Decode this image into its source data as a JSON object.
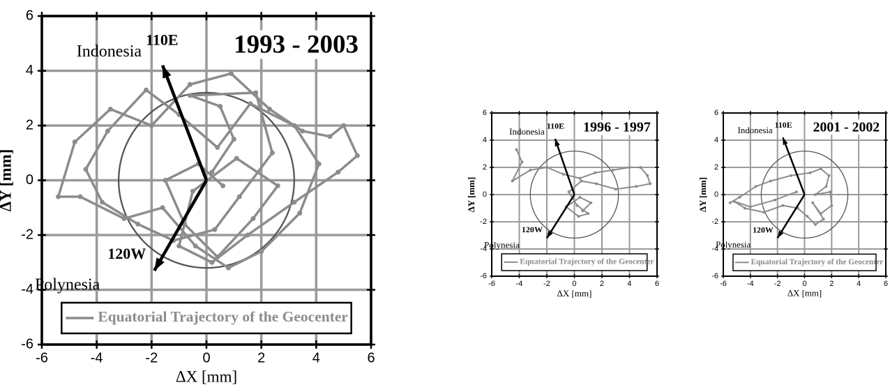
{
  "chart_data": [
    {
      "type": "line",
      "title": "1993 - 2003",
      "xlabel": "ΔX [mm]",
      "ylabel": "ΔY [mm]",
      "xlim": [
        -6,
        6
      ],
      "ylim": [
        -6,
        6
      ],
      "xticks": [
        -6,
        -4,
        -2,
        0,
        2,
        4,
        6
      ],
      "yticks": [
        -6,
        -4,
        -2,
        0,
        2,
        4,
        6
      ],
      "grid": true,
      "legend": "lower center",
      "circle_radius": 3.2,
      "arrows": [
        {
          "label": "110E",
          "region": "Indonesia",
          "x": -1.6,
          "y": 4.2
        },
        {
          "label": "120W",
          "region": "Polynesia",
          "x": -1.9,
          "y": -3.3
        }
      ],
      "series": [
        {
          "name": "Equatorial Trajectory of the Geocenter",
          "color": "#8c8c8c",
          "x": [
            0.2,
            1.0,
            0.5,
            -0.6,
            1.8,
            2.4,
            1.2,
            0.3,
            -1.2,
            -2.5,
            -3.8,
            -4.4,
            -3.6,
            -2.2,
            -1.0,
            0.4,
            1.6,
            3.2,
            4.1,
            3.4,
            2.0,
            0.8,
            -0.4,
            -1.6,
            -3.0,
            -4.6,
            -5.4,
            -4.8,
            -3.5,
            -2.0,
            -0.6,
            0.9,
            2.3,
            3.5,
            4.5,
            5.0,
            5.5,
            4.8,
            3.2,
            1.5,
            0.2,
            -1.0,
            -0.5,
            1.1,
            2.6,
            1.7,
            0.4,
            -0.8,
            -1.5,
            -0.3,
            0.6
          ],
          "values": [
            0.3,
            1.5,
            2.7,
            3.1,
            3.2,
            1.0,
            -0.6,
            -1.8,
            -2.2,
            -1.6,
            -0.8,
            0.4,
            1.8,
            3.3,
            2.4,
            1.2,
            2.8,
            2.0,
            0.6,
            -1.2,
            -2.6,
            -3.2,
            -2.4,
            -1.0,
            -1.4,
            -0.6,
            -0.6,
            1.4,
            2.6,
            2.0,
            3.5,
            3.9,
            2.6,
            1.8,
            1.6,
            2.0,
            0.9,
            0.3,
            -0.8,
            -2.0,
            -3.0,
            -2.4,
            -0.4,
            0.8,
            -0.2,
            -1.4,
            -2.8,
            -1.6,
            0.0,
            0.6,
            -0.2
          ]
        }
      ]
    },
    {
      "type": "line",
      "title": "1996 - 1997",
      "xlabel": "ΔX [mm]",
      "ylabel": "ΔY [mm]",
      "xlim": [
        -6,
        6
      ],
      "ylim": [
        -6,
        6
      ],
      "xticks": [
        -6,
        -4,
        -2,
        0,
        2,
        4,
        6
      ],
      "yticks": [
        -6,
        -4,
        -2,
        0,
        2,
        4,
        6
      ],
      "grid": true,
      "legend": "lower center",
      "circle_radius": 3.2,
      "arrows": [
        {
          "label": "110E",
          "region": "Indonesia",
          "x": -1.4,
          "y": 4.1
        },
        {
          "label": "120W",
          "region": "Polynesia",
          "x": -2.0,
          "y": -3.2
        }
      ],
      "series": [
        {
          "name": "Equatorial Trajectory of the Geocenter",
          "color": "#8c8c8c",
          "x": [
            -4.2,
            -3.8,
            -4.5,
            -3.2,
            -2.0,
            -0.8,
            0.4,
            1.5,
            2.8,
            4.0,
            4.8,
            5.3,
            5.5,
            4.5,
            3.0,
            1.6,
            0.5,
            -0.4,
            0.2,
            1.0,
            0.3,
            -0.6,
            0.4,
            1.2,
            0.6
          ],
          "values": [
            3.3,
            2.4,
            1.0,
            1.8,
            2.0,
            1.5,
            1.2,
            1.6,
            1.8,
            2.0,
            2.0,
            1.4,
            0.8,
            0.6,
            0.4,
            0.8,
            1.0,
            0.2,
            -0.8,
            -1.4,
            -1.6,
            -0.9,
            -0.2,
            -0.6,
            -1.2
          ]
        }
      ]
    },
    {
      "type": "line",
      "title": "2001 - 2002",
      "xlabel": "ΔX [mm]",
      "ylabel": "ΔY [mm]",
      "xlim": [
        -6,
        6
      ],
      "ylim": [
        -6,
        6
      ],
      "xticks": [
        -6,
        -4,
        -2,
        0,
        2,
        4,
        6
      ],
      "yticks": [
        -6,
        -4,
        -2,
        0,
        2,
        4,
        6
      ],
      "grid": true,
      "legend": "lower center",
      "circle_radius": 3.2,
      "arrows": [
        {
          "label": "110E",
          "region": "Indonesia",
          "x": -1.6,
          "y": 4.2
        },
        {
          "label": "120W",
          "region": "Polynesia",
          "x": -2.0,
          "y": -3.2
        }
      ],
      "series": [
        {
          "name": "Equatorial Trajectory of the Geocenter",
          "color": "#8c8c8c",
          "x": [
            -5.5,
            -4.8,
            -3.6,
            -2.5,
            -1.0,
            0.4,
            1.2,
            1.8,
            1.6,
            0.8,
            1.9,
            2.0,
            1.2,
            0.6,
            1.4,
            0.8,
            0.2,
            -0.5,
            -1.6,
            -3.0,
            -4.4,
            -5.2,
            -4.0,
            -2.2,
            -0.6
          ],
          "values": [
            -0.6,
            -0.2,
            0.6,
            1.0,
            1.4,
            1.6,
            1.9,
            1.4,
            0.6,
            0.0,
            0.2,
            -0.8,
            -1.4,
            -0.6,
            -1.8,
            -2.2,
            -1.6,
            -1.0,
            -0.8,
            -1.3,
            -1.0,
            -0.5,
            -0.9,
            -0.4,
            0.2
          ]
        }
      ]
    }
  ]
}
